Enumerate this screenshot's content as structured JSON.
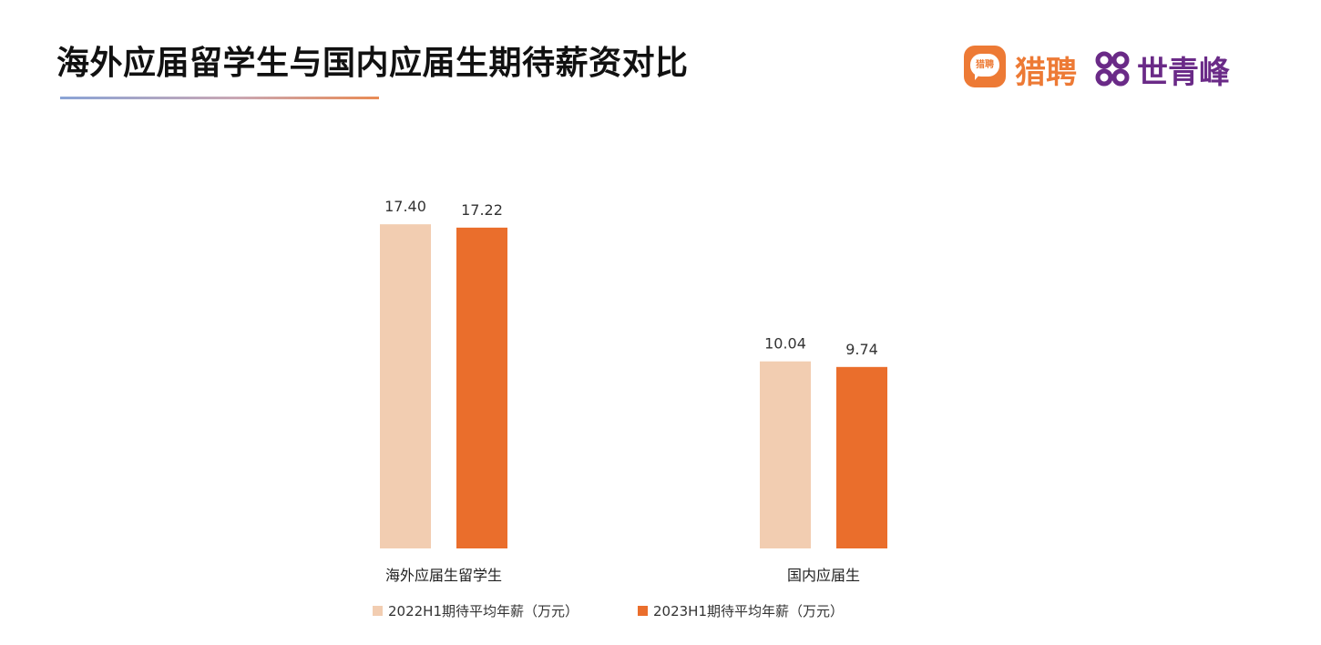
{
  "title": "海外应届留学生与国内应届生期待薪资对比",
  "logo": {
    "icon_text": "猎聘",
    "brand1": "猎聘",
    "brand2": "世青峰",
    "brand1_color": "#ed7a35",
    "brand2_color": "#6a2a87"
  },
  "chart_data": {
    "type": "bar",
    "title": "海外应届留学生与国内应届生期待薪资对比",
    "categories": [
      "海外应届生留学生",
      "国内应届生"
    ],
    "series": [
      {
        "name": "2022H1期待平均年薪（万元）",
        "values": [
          17.4,
          10.04
        ],
        "labels": [
          "17.40",
          "10.04"
        ],
        "color": "#f2cdb1"
      },
      {
        "name": "2023H1期待平均年薪（万元）",
        "values": [
          17.22,
          9.74
        ],
        "labels": [
          "17.22",
          "9.74"
        ],
        "color": "#ea6e2c"
      }
    ],
    "ylim": [
      0,
      20
    ],
    "grid": false,
    "legend": "bottom"
  }
}
